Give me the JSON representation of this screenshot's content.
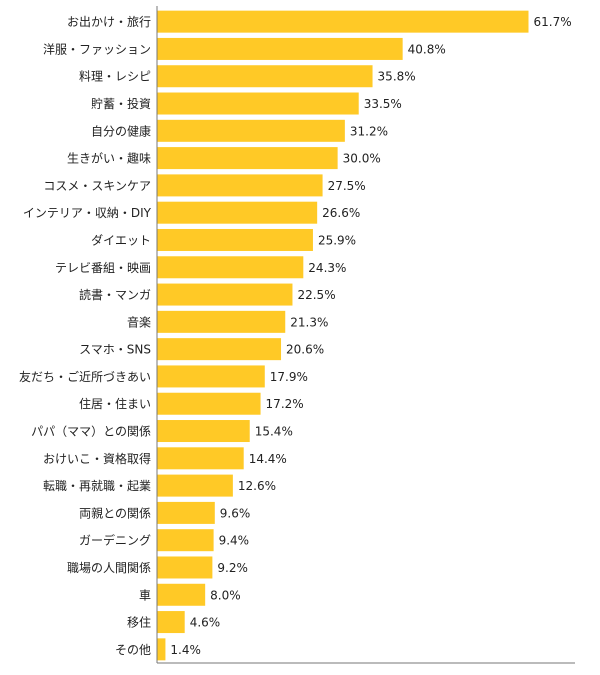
{
  "chart_data": {
    "type": "bar",
    "orientation": "horizontal",
    "categories": [
      "お出かけ・旅行",
      "洋服・ファッション",
      "料理・レシピ",
      "貯蓄・投資",
      "自分の健康",
      "生きがい・趣味",
      "コスメ・スキンケア",
      "インテリア・収納・DIY",
      "ダイエット",
      "テレビ番組・映画",
      "読書・マンガ",
      "音楽",
      "スマホ・SNS",
      "友だち・ご近所づきあい",
      "住居・住まい",
      "パパ（ママ）との関係",
      "おけいこ・資格取得",
      "転職・再就職・起業",
      "両親との関係",
      "ガーデニング",
      "職場の人間関係",
      "車",
      "移住",
      "その他"
    ],
    "values": [
      61.7,
      40.8,
      35.8,
      33.5,
      31.2,
      30.0,
      27.5,
      26.6,
      25.9,
      24.3,
      22.5,
      21.3,
      20.6,
      17.9,
      17.2,
      15.4,
      14.4,
      12.6,
      9.6,
      9.4,
      9.2,
      8.0,
      4.6,
      1.4
    ],
    "value_labels": [
      "61.7%",
      "40.8%",
      "35.8%",
      "33.5%",
      "31.2%",
      "30.0%",
      "27.5%",
      "26.6%",
      "25.9%",
      "24.3%",
      "22.5%",
      "21.3%",
      "20.6%",
      "17.9%",
      "17.2%",
      "15.4%",
      "14.4%",
      "12.6%",
      "9.6%",
      "9.4%",
      "9.2%",
      "8.0%",
      "4.6%",
      "1.4%"
    ],
    "xlim": [
      0,
      65
    ],
    "grid": false,
    "legend": "none",
    "colors": {
      "bar": "#FFC926",
      "axis": "#777777"
    }
  }
}
